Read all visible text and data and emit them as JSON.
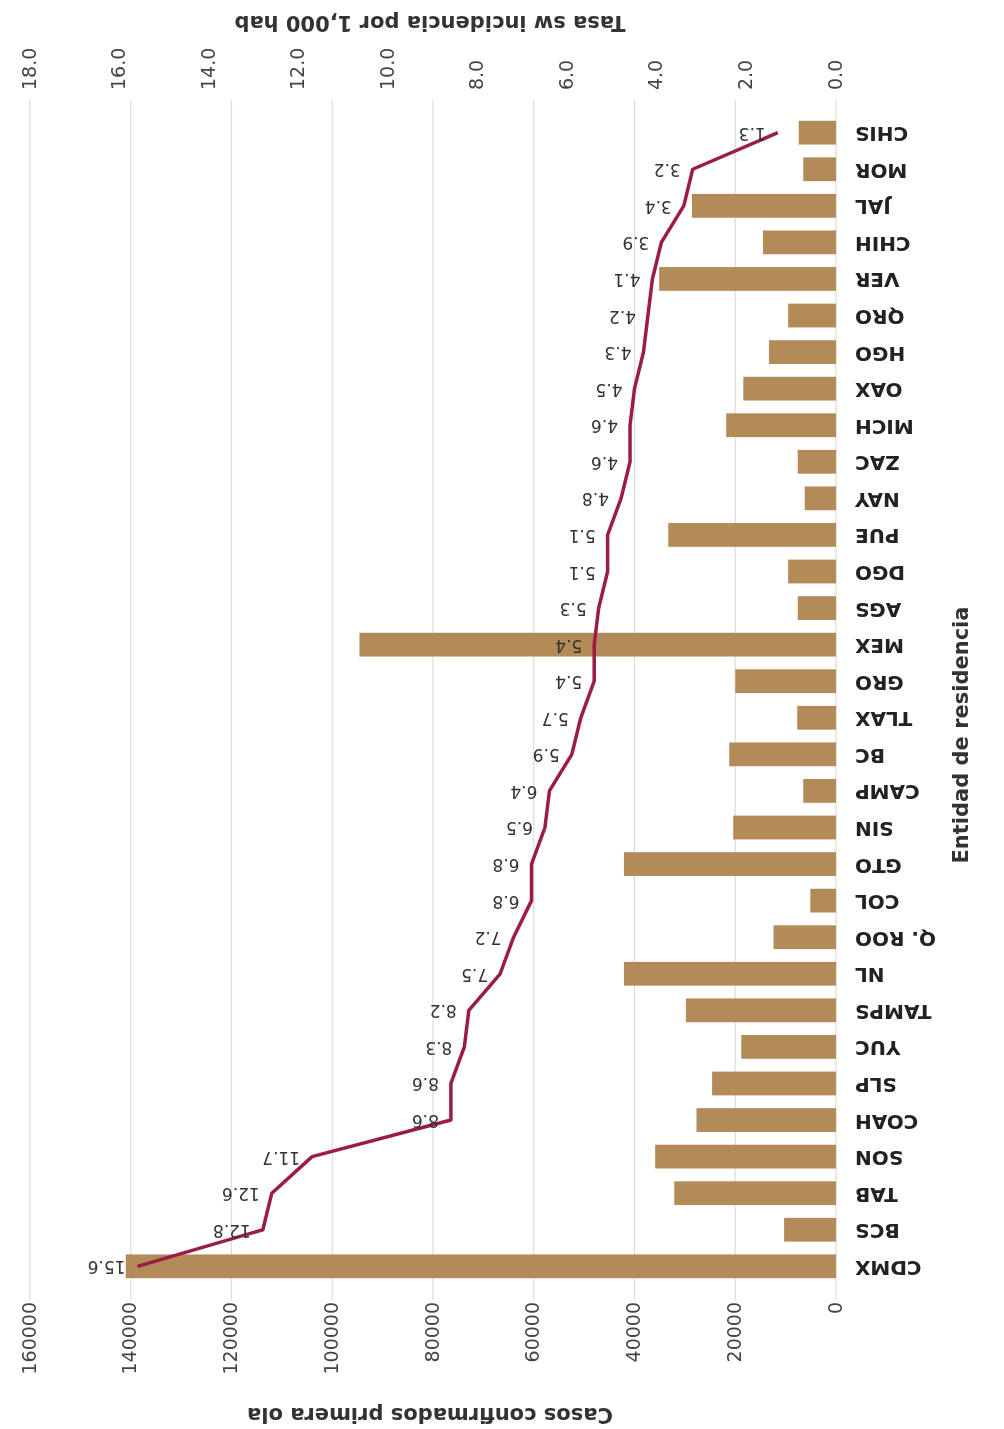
{
  "chart_data": {
    "type": "bar",
    "orientation": "horizontal",
    "xlabel": "Casos confirmados primera ola",
    "x2label": "Tasa sw incidencia por 1,000 hab",
    "ylabel": "Entidad de residencia",
    "categories": [
      "CHIS",
      "MOR",
      "JAL",
      "CHIH",
      "VER",
      "QRO",
      "HGO",
      "OAX",
      "MICH",
      "ZAC",
      "NAY",
      "PUE",
      "DGO",
      "AGS",
      "MEX",
      "GRO",
      "TLAX",
      "BC",
      "CAMP",
      "SIN",
      "GTO",
      "COL",
      "Q. ROO",
      "NL",
      "TAMPS",
      "YUC",
      "SLP",
      "COAH",
      "SON",
      "TAB",
      "BCS",
      "CDMX"
    ],
    "series": [
      {
        "color": "#b38b58",
        "values": [
          7400,
          6500,
          28600,
          14500,
          35100,
          9500,
          13300,
          18400,
          21800,
          7600,
          6200,
          33300,
          9500,
          7600,
          94600,
          20000,
          7700,
          21200,
          6500,
          20400,
          42100,
          5100,
          12400,
          42100,
          29800,
          18800,
          24600,
          27700,
          35900,
          32100,
          10300,
          141000
        ]
      },
      {
        "type": "line",
        "axis": "x2",
        "color": "#9b1d45",
        "marker": "none",
        "values": [
          1.3,
          3.2,
          3.4,
          3.9,
          4.1,
          4.2,
          4.3,
          4.5,
          4.6,
          4.6,
          4.8,
          5.1,
          5.1,
          5.3,
          5.4,
          5.4,
          5.7,
          5.9,
          6.4,
          6.5,
          6.8,
          6.8,
          7.2,
          7.5,
          8.2,
          8.3,
          8.6,
          8.6,
          11.7,
          12.6,
          12.8,
          15.6
        ],
        "value_labels": [
          "1.3",
          "3.2",
          "3.4",
          "3.9",
          "4.1",
          "4.2",
          "4.3",
          "4.5",
          "4.6",
          "4.6",
          "4.8",
          "5.1",
          "5.1",
          "5.3",
          "5.4",
          "5.4",
          "5.7",
          "5.9",
          "6.4",
          "6.5",
          "6.8",
          "6.8",
          "7.2",
          "7.5",
          "8.2",
          "8.3",
          "8.6",
          "8.6",
          "11.7",
          "12.6",
          "12.8",
          "15.6"
        ]
      }
    ],
    "xlim": [
      160000,
      0
    ],
    "xticks": [
      0,
      20000,
      40000,
      60000,
      80000,
      100000,
      120000,
      140000,
      160000
    ],
    "x2lim": [
      18,
      0
    ],
    "x2ticks": [
      {
        "value": 0,
        "label": "0.0"
      },
      {
        "value": 2,
        "label": "2.0"
      },
      {
        "value": 4,
        "label": "4.0"
      },
      {
        "value": 6,
        "label": "6.0"
      },
      {
        "value": 8,
        "label": "8.0"
      },
      {
        "value": 10,
        "label": "10.0"
      },
      {
        "value": 12,
        "label": "12.0"
      },
      {
        "value": 14,
        "label": "14.0"
      },
      {
        "value": 16,
        "label": "16.0"
      },
      {
        "value": 18,
        "label": "18.0"
      }
    ],
    "grid": "x"
  }
}
